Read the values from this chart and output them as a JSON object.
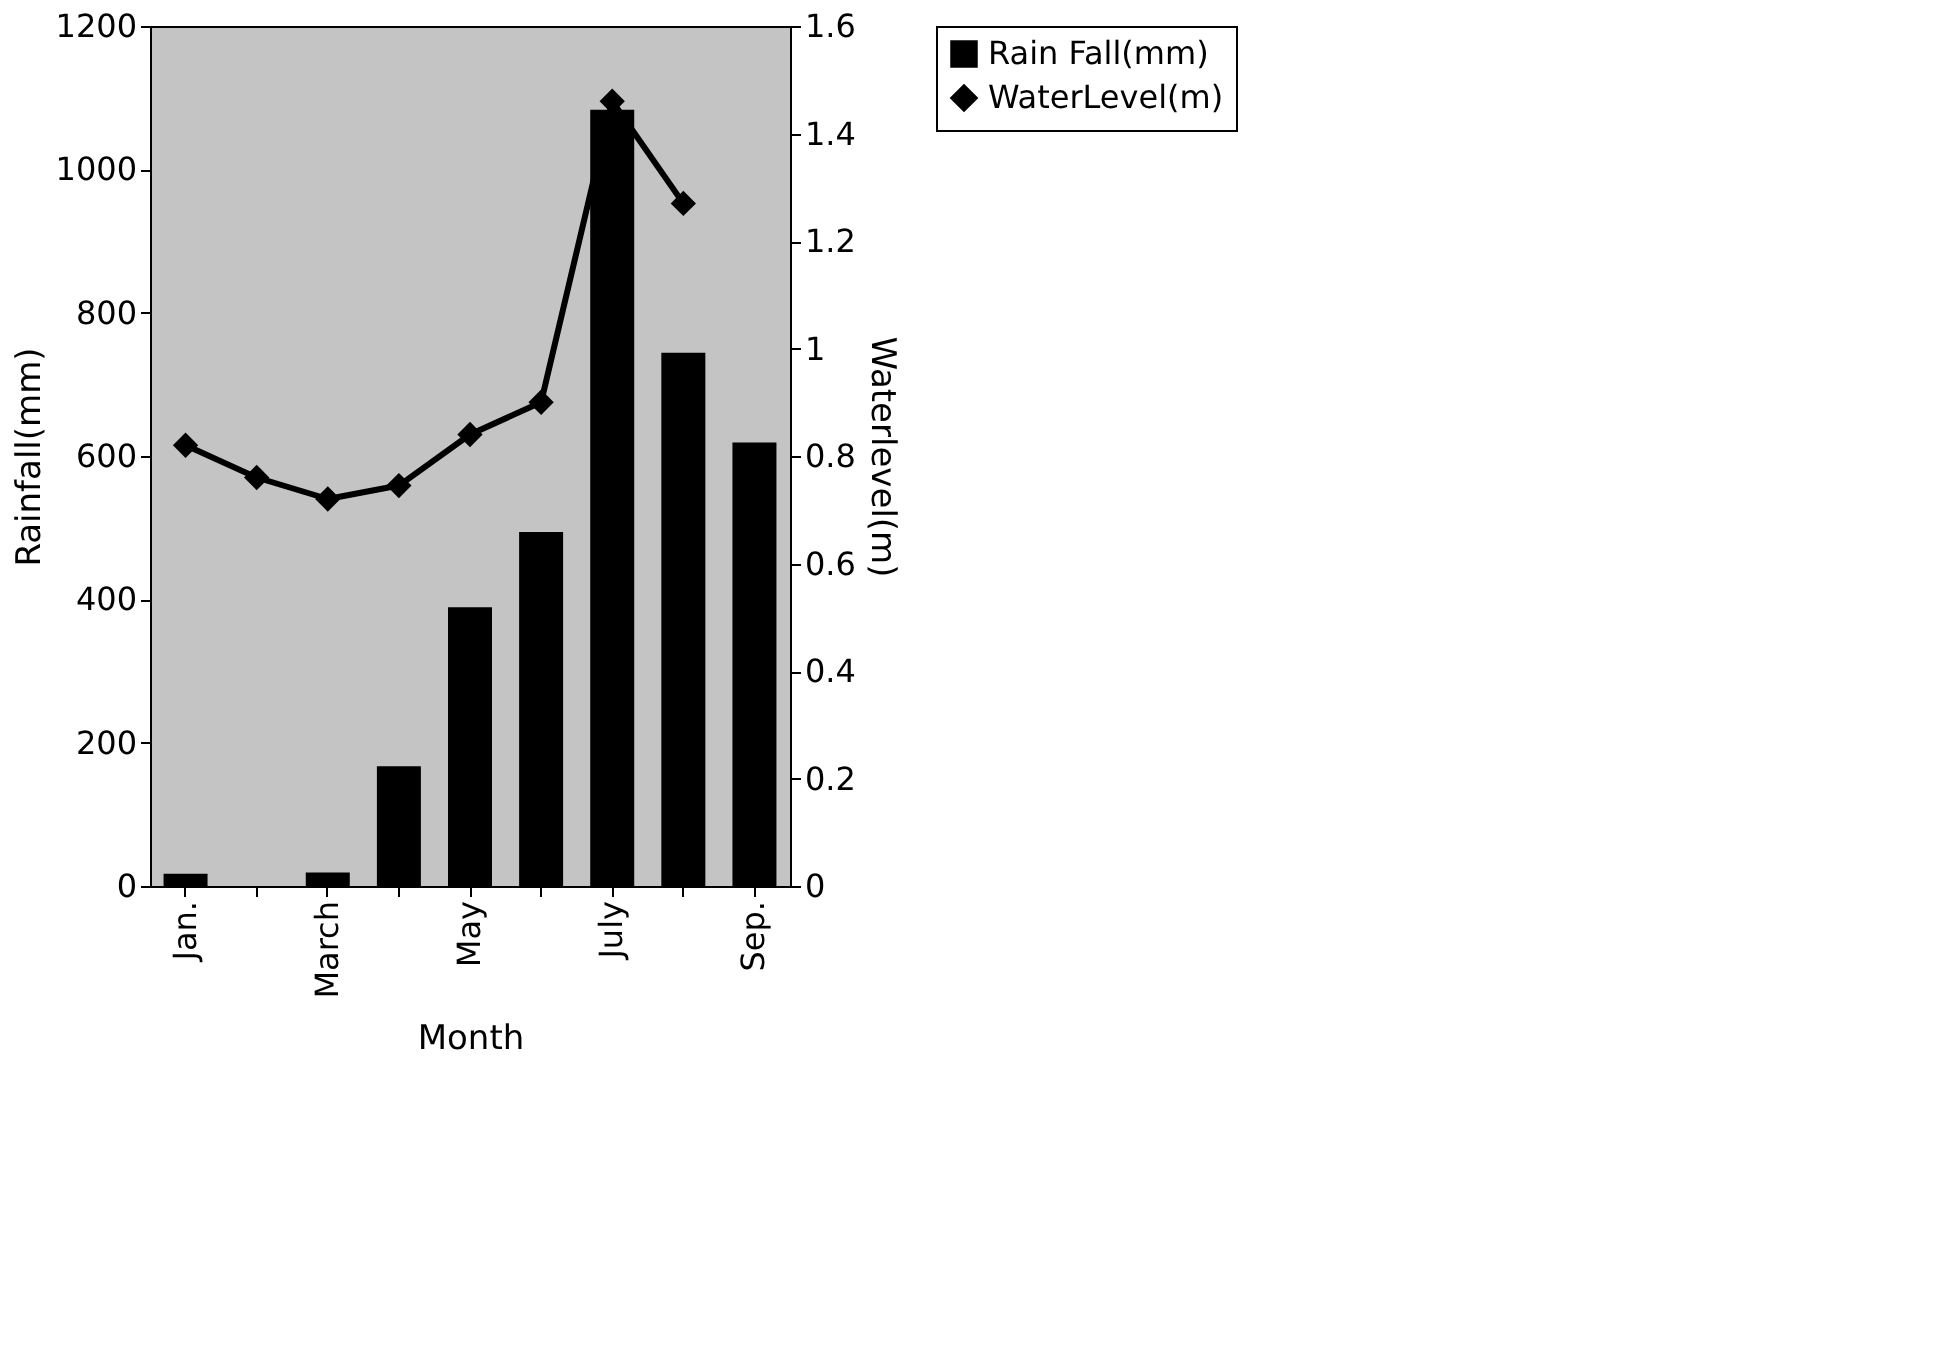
{
  "chart_data": {
    "type": "bar",
    "xlabel": "Month",
    "ylabel": "Rainfall(mm)",
    "y2label": "Waterlevel(m)",
    "categories": [
      "Jan.",
      null,
      "March",
      null,
      "May",
      null,
      "July",
      null,
      "Sep."
    ],
    "series": [
      {
        "name": "Rain Fall(mm)",
        "color": "#000000",
        "values": [
          17,
          0,
          19,
          167,
          389,
          494,
          1083,
          744,
          619
        ]
      },
      {
        "name": "WaterLevel(m)",
        "type": "line",
        "axis": "y2",
        "color": "#000000",
        "marker": "diamond",
        "values": [
          0.82,
          0.76,
          0.72,
          0.745,
          0.84,
          0.9,
          1.46,
          1.27,
          null
        ]
      }
    ],
    "ylim": [
      0,
      1200
    ],
    "yticks": [
      0,
      200,
      400,
      600,
      800,
      1000,
      1200
    ],
    "y2lim": [
      0,
      1.6
    ],
    "y2ticks": [
      0,
      0.2,
      0.4,
      0.6,
      0.8,
      1,
      1.2,
      1.4,
      1.6
    ],
    "grid": false,
    "legend": "right"
  }
}
